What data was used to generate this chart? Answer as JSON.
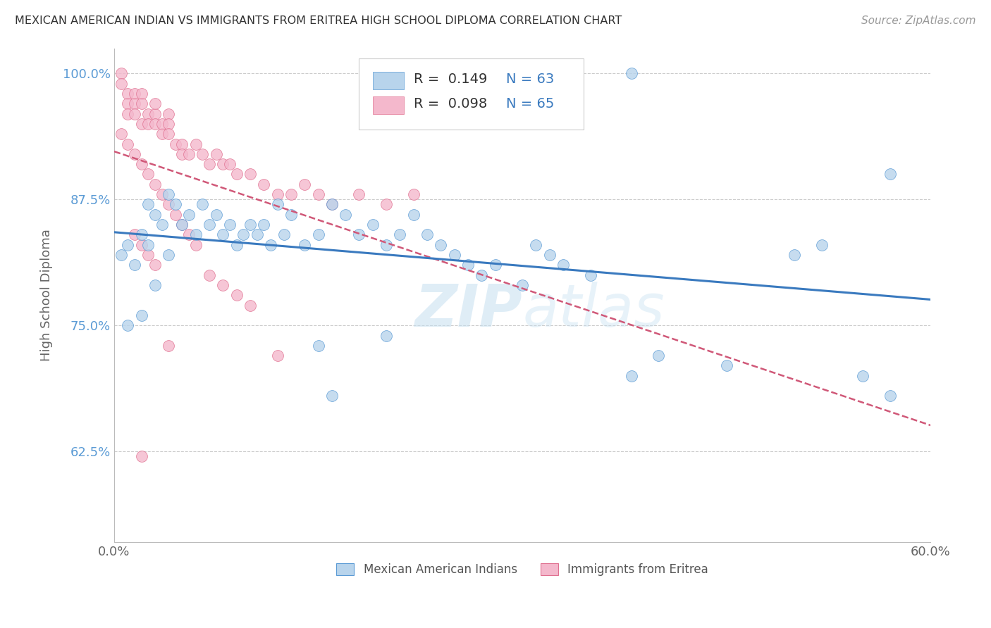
{
  "title": "MEXICAN AMERICAN INDIAN VS IMMIGRANTS FROM ERITREA HIGH SCHOOL DIPLOMA CORRELATION CHART",
  "source": "Source: ZipAtlas.com",
  "ylabel": "High School Diploma",
  "x_min": 0.0,
  "x_max": 0.6,
  "y_min": 0.535,
  "y_max": 1.025,
  "yticks": [
    0.625,
    0.75,
    0.875,
    1.0
  ],
  "ytick_labels": [
    "62.5%",
    "75.0%",
    "87.5%",
    "100.0%"
  ],
  "xticks": [
    0.0,
    0.1,
    0.2,
    0.3,
    0.4,
    0.5,
    0.6
  ],
  "xtick_labels": [
    "0.0%",
    "",
    "",
    "",
    "",
    "",
    "60.0%"
  ],
  "blue_fill": "#b8d4ec",
  "blue_edge": "#5b9bd5",
  "pink_fill": "#f4b8cc",
  "pink_edge": "#e07090",
  "blue_line_color": "#3a7abf",
  "pink_line_color": "#d05878",
  "watermark": "ZIPatlas",
  "background_color": "#ffffff",
  "grid_color": "#cccccc",
  "blue_x": [
    0.005,
    0.01,
    0.01,
    0.015,
    0.02,
    0.02,
    0.025,
    0.025,
    0.03,
    0.03,
    0.035,
    0.04,
    0.04,
    0.045,
    0.05,
    0.055,
    0.06,
    0.065,
    0.07,
    0.075,
    0.08,
    0.085,
    0.09,
    0.095,
    0.1,
    0.105,
    0.11,
    0.115,
    0.12,
    0.125,
    0.13,
    0.14,
    0.15,
    0.16,
    0.17,
    0.18,
    0.19,
    0.2,
    0.21,
    0.22,
    0.23,
    0.24,
    0.25,
    0.26,
    0.27,
    0.28,
    0.3,
    0.31,
    0.32,
    0.33,
    0.35,
    0.38,
    0.4,
    0.45,
    0.5,
    0.52,
    0.55,
    0.57,
    0.38,
    0.2,
    0.15,
    0.16,
    0.57
  ],
  "blue_y": [
    0.82,
    0.83,
    0.75,
    0.81,
    0.84,
    0.76,
    0.87,
    0.83,
    0.86,
    0.79,
    0.85,
    0.88,
    0.82,
    0.87,
    0.85,
    0.86,
    0.84,
    0.87,
    0.85,
    0.86,
    0.84,
    0.85,
    0.83,
    0.84,
    0.85,
    0.84,
    0.85,
    0.83,
    0.87,
    0.84,
    0.86,
    0.83,
    0.84,
    0.87,
    0.86,
    0.84,
    0.85,
    0.83,
    0.84,
    0.86,
    0.84,
    0.83,
    0.82,
    0.81,
    0.8,
    0.81,
    0.79,
    0.83,
    0.82,
    0.81,
    0.8,
    0.7,
    0.72,
    0.71,
    0.82,
    0.83,
    0.7,
    0.68,
    1.0,
    0.74,
    0.73,
    0.68,
    0.9
  ],
  "pink_x": [
    0.005,
    0.005,
    0.01,
    0.01,
    0.01,
    0.015,
    0.015,
    0.015,
    0.02,
    0.02,
    0.02,
    0.025,
    0.025,
    0.03,
    0.03,
    0.03,
    0.035,
    0.035,
    0.04,
    0.04,
    0.04,
    0.045,
    0.05,
    0.05,
    0.055,
    0.06,
    0.065,
    0.07,
    0.075,
    0.08,
    0.085,
    0.09,
    0.1,
    0.11,
    0.12,
    0.13,
    0.14,
    0.15,
    0.16,
    0.18,
    0.2,
    0.22,
    0.005,
    0.01,
    0.015,
    0.02,
    0.025,
    0.03,
    0.035,
    0.04,
    0.045,
    0.05,
    0.055,
    0.06,
    0.07,
    0.08,
    0.09,
    0.1,
    0.12,
    0.015,
    0.02,
    0.025,
    0.03,
    0.04,
    0.02
  ],
  "pink_y": [
    1.0,
    0.99,
    0.98,
    0.97,
    0.96,
    0.98,
    0.97,
    0.96,
    0.98,
    0.97,
    0.95,
    0.96,
    0.95,
    0.96,
    0.97,
    0.95,
    0.94,
    0.95,
    0.96,
    0.95,
    0.94,
    0.93,
    0.93,
    0.92,
    0.92,
    0.93,
    0.92,
    0.91,
    0.92,
    0.91,
    0.91,
    0.9,
    0.9,
    0.89,
    0.88,
    0.88,
    0.89,
    0.88,
    0.87,
    0.88,
    0.87,
    0.88,
    0.94,
    0.93,
    0.92,
    0.91,
    0.9,
    0.89,
    0.88,
    0.87,
    0.86,
    0.85,
    0.84,
    0.83,
    0.8,
    0.79,
    0.78,
    0.77,
    0.72,
    0.84,
    0.83,
    0.82,
    0.81,
    0.73,
    0.62
  ]
}
